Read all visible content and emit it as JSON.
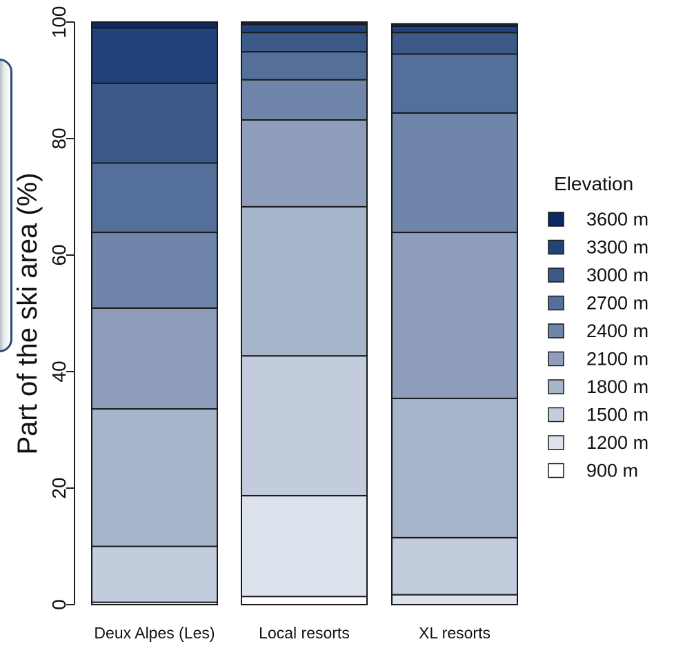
{
  "chart_data": {
    "type": "bar",
    "stacked": true,
    "ylabel": "Part of the ski area (%)",
    "xlabel": "",
    "ylim": [
      0,
      100
    ],
    "yticks": [
      0,
      20,
      40,
      60,
      80,
      100
    ],
    "categories": [
      "Deux Alpes (Les)",
      "Local resorts",
      "XL resorts"
    ],
    "legend": {
      "title": "Elevation",
      "position": "right"
    },
    "series": [
      {
        "name": "900 m",
        "color": "#ffffff",
        "values": [
          0.4,
          1.4,
          0.0
        ]
      },
      {
        "name": "1200 m",
        "color": "#dde3ec",
        "values": [
          0.0,
          17.3,
          1.7
        ]
      },
      {
        "name": "1500 m",
        "color": "#c2ccdc",
        "values": [
          9.6,
          24.0,
          9.8
        ]
      },
      {
        "name": "1800 m",
        "color": "#a8b6cc",
        "values": [
          23.6,
          25.6,
          23.9
        ]
      },
      {
        "name": "2100 m",
        "color": "#8d9dbb",
        "values": [
          17.3,
          14.9,
          28.5
        ]
      },
      {
        "name": "2400 m",
        "color": "#6f86aa",
        "values": [
          13.0,
          6.9,
          20.5
        ]
      },
      {
        "name": "2700 m",
        "color": "#54709a",
        "values": [
          11.9,
          4.8,
          10.1
        ]
      },
      {
        "name": "3000 m",
        "color": "#3c5a89",
        "values": [
          13.7,
          3.3,
          3.7
        ]
      },
      {
        "name": "3300 m",
        "color": "#22427a",
        "values": [
          9.5,
          1.4,
          1.1
        ]
      },
      {
        "name": "3600 m",
        "color": "#0c2a62",
        "values": [
          1.0,
          0.4,
          0.4
        ]
      }
    ]
  }
}
